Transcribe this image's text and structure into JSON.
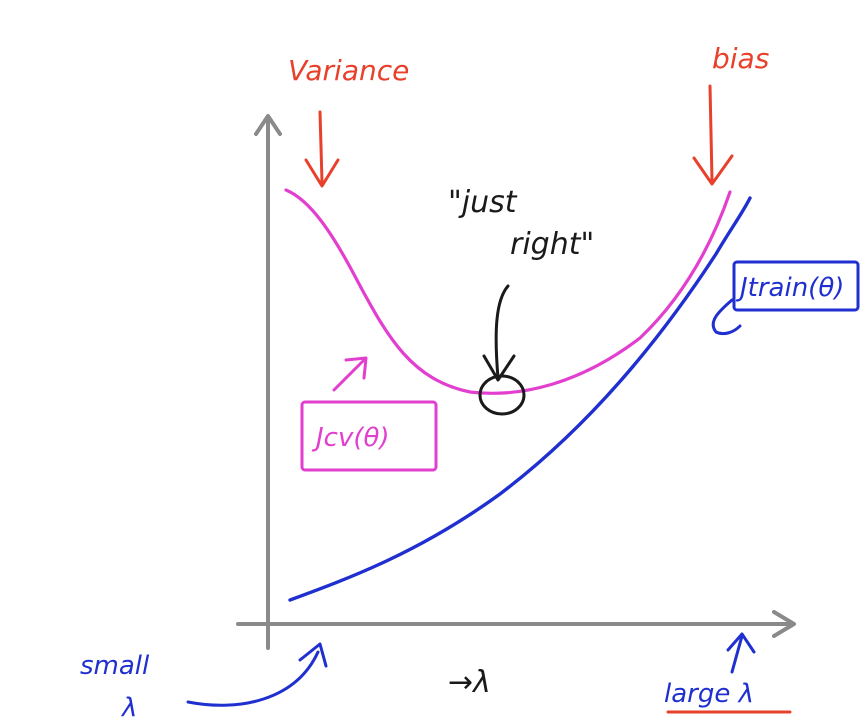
{
  "annotations": {
    "variance": "Variance",
    "bias": "bias",
    "just_right_line1": "\"just",
    "just_right_line2": "right\"",
    "j_cv": "Jcv(θ)",
    "j_train": "Jtrain(θ)",
    "small_line1": "small",
    "small_line2": "λ",
    "lambda_axis": "→λ",
    "large": "large λ"
  },
  "colors": {
    "axis": "#8a8a8a",
    "variance_bias": "#e8402a",
    "cv_curve": "#e23fcf",
    "train_curve": "#1f2fd0",
    "ink": "#1a1a1a",
    "background": "#ffffff"
  }
}
